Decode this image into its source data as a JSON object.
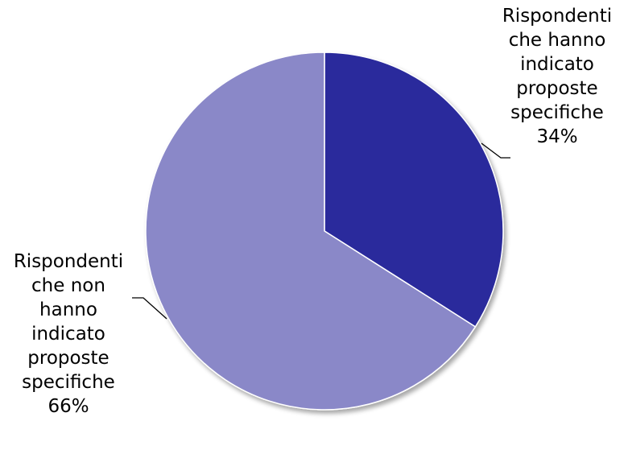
{
  "chart_data": {
    "type": "pie",
    "title": "",
    "start_angle_deg": 0,
    "direction": "clockwise",
    "slices": [
      {
        "label_lines": [
          "Rispondenti",
          "che hanno",
          "indicato",
          "proposte",
          "specifiche"
        ],
        "percent_label": "34%",
        "value": 34,
        "color": "#2b2a9c"
      },
      {
        "label_lines": [
          "Rispondenti",
          "che non",
          "hanno",
          "indicato",
          "proposte",
          "specifiche"
        ],
        "percent_label": "66%",
        "value": 66,
        "color": "#8a88c8"
      }
    ]
  }
}
